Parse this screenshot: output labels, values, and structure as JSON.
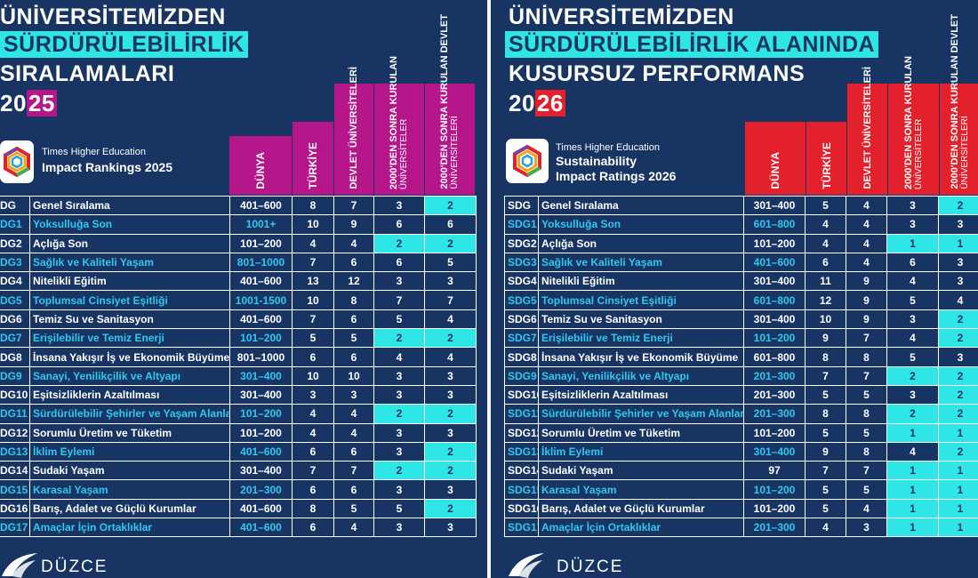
{
  "left": {
    "title_line1": "ÜNİVERSİTEMİZDEN",
    "title_line2": "SÜRDÜRÜLEBİLİRLİK",
    "title_line3": "SIRALAMALARI",
    "year_prefix": "20",
    "year_suffix": "25",
    "logo_sub": "Times Higher Education",
    "logo_main": "Impact Rankings 2025",
    "headers": {
      "dunya": "DÜNYA",
      "turkiye": "TÜRKİYE",
      "devlet": "DEVLET ÜNİVERSİTELERİ",
      "sonra_strong": "2000'DEN SONRA KURULAN",
      "sonra_light": "ÜNİVERSİTELER",
      "sonra_devlet_strong": "2000'DEN SONRA KURULAN DEVLET",
      "sonra_devlet_light": "ÜNİVERSİTELERİ"
    },
    "rows": [
      {
        "code": "DG",
        "name": "Genel Sıralama",
        "dunya": "401–600",
        "turkiye": "8",
        "devlet": "7",
        "sonra": "3",
        "sonra_devlet": "2"
      },
      {
        "code": "DG1",
        "name": "Yoksulluğa Son",
        "dunya": "1001+",
        "turkiye": "10",
        "devlet": "9",
        "sonra": "6",
        "sonra_devlet": "6"
      },
      {
        "code": "DG2",
        "name": "Açlığa Son",
        "dunya": "101–200",
        "turkiye": "4",
        "devlet": "4",
        "sonra": "2",
        "sonra_devlet": "2"
      },
      {
        "code": "DG3",
        "name": "Sağlık ve Kaliteli Yaşam",
        "dunya": "801–1000",
        "turkiye": "7",
        "devlet": "6",
        "sonra": "6",
        "sonra_devlet": "5"
      },
      {
        "code": "DG4",
        "name": "Nitelikli Eğitim",
        "dunya": "401–600",
        "turkiye": "13",
        "devlet": "12",
        "sonra": "3",
        "sonra_devlet": "3"
      },
      {
        "code": "DG5",
        "name": "Toplumsal Cinsiyet Eşitliği",
        "dunya": "1001-1500",
        "turkiye": "10",
        "devlet": "8",
        "sonra": "7",
        "sonra_devlet": "7"
      },
      {
        "code": "DG6",
        "name": "Temiz Su ve Sanitasyon",
        "dunya": "401–600",
        "turkiye": "7",
        "devlet": "6",
        "sonra": "5",
        "sonra_devlet": "4"
      },
      {
        "code": "DG7",
        "name": "Erişilebilir ve Temiz Enerji",
        "dunya": "101–200",
        "turkiye": "5",
        "devlet": "5",
        "sonra": "2",
        "sonra_devlet": "2"
      },
      {
        "code": "DG8",
        "name": "İnsana Yakışır İş ve Ekonomik Büyüme",
        "dunya": "801–1000",
        "turkiye": "6",
        "devlet": "6",
        "sonra": "4",
        "sonra_devlet": "4"
      },
      {
        "code": "DG9",
        "name": "Sanayi, Yenilikçilik ve Altyapı",
        "dunya": "301–400",
        "turkiye": "10",
        "devlet": "10",
        "sonra": "3",
        "sonra_devlet": "3"
      },
      {
        "code": "DG10",
        "name": "Eşitsizliklerin Azaltılması",
        "dunya": "301–400",
        "turkiye": "3",
        "devlet": "3",
        "sonra": "3",
        "sonra_devlet": "3"
      },
      {
        "code": "DG11",
        "name": "Sürdürülebilir Şehirler ve Yaşam Alanları",
        "dunya": "101–200",
        "turkiye": "4",
        "devlet": "4",
        "sonra": "2",
        "sonra_devlet": "2"
      },
      {
        "code": "DG12",
        "name": "Sorumlu Üretim ve Tüketim",
        "dunya": "101–200",
        "turkiye": "4",
        "devlet": "4",
        "sonra": "3",
        "sonra_devlet": "3"
      },
      {
        "code": "DG13",
        "name": "İklim Eylemi",
        "dunya": "401–600",
        "turkiye": "6",
        "devlet": "6",
        "sonra": "3",
        "sonra_devlet": "2"
      },
      {
        "code": "DG14",
        "name": "Sudaki Yaşam",
        "dunya": "301–400",
        "turkiye": "7",
        "devlet": "7",
        "sonra": "2",
        "sonra_devlet": "2"
      },
      {
        "code": "DG15",
        "name": "Karasal Yaşam",
        "dunya": "201–300",
        "turkiye": "6",
        "devlet": "6",
        "sonra": "3",
        "sonra_devlet": "3"
      },
      {
        "code": "DG16",
        "name": "Barış, Adalet ve Güçlü Kurumlar",
        "dunya": "401–600",
        "turkiye": "8",
        "devlet": "5",
        "sonra": "5",
        "sonra_devlet": "2"
      },
      {
        "code": "DG17",
        "name": "Amaçlar İçin Ortaklıklar",
        "dunya": "401–600",
        "turkiye": "6",
        "devlet": "4",
        "sonra": "3",
        "sonra_devlet": "3"
      }
    ],
    "highlights": [
      [
        0,
        "sonra_devlet"
      ],
      [
        2,
        "sonra"
      ],
      [
        2,
        "sonra_devlet"
      ],
      [
        7,
        "sonra"
      ],
      [
        7,
        "sonra_devlet"
      ],
      [
        11,
        "sonra"
      ],
      [
        11,
        "sonra_devlet"
      ],
      [
        13,
        "sonra_devlet"
      ],
      [
        14,
        "sonra"
      ],
      [
        14,
        "sonra_devlet"
      ],
      [
        16,
        "sonra_devlet"
      ]
    ],
    "footer": "DÜZCE"
  },
  "right": {
    "title_line1": "ÜNİVERSİTEMİZDEN",
    "title_line2": "SÜRDÜRÜLEBİLİRLİK ALANINDA",
    "title_line3": "KUSURSUZ PERFORMANS",
    "year_prefix": "20",
    "year_suffix": "26",
    "logo_sub": "Times Higher Education",
    "logo_main_1": "Sustainability",
    "logo_main_2": "Impact Ratings 2026",
    "headers": {
      "dunya": "DÜNYA",
      "turkiye": "TÜRKİYE",
      "devlet": "DEVLET ÜNİVERSİTELERİ",
      "sonra_strong": "2000'DEN SONRA KURULAN",
      "sonra_light": "ÜNİVERSİTELER",
      "sonra_devlet_strong": "2000'DEN SONRA KURULAN DEVLET",
      "sonra_devlet_light": "ÜNİVERSİTELERİ"
    },
    "rows": [
      {
        "code": "SDG",
        "name": "Genel Sıralama",
        "dunya": "301–400",
        "turkiye": "5",
        "devlet": "4",
        "sonra": "3",
        "sonra_devlet": "2"
      },
      {
        "code": "SDG1",
        "name": "Yoksulluğa Son",
        "dunya": "601–800",
        "turkiye": "4",
        "devlet": "4",
        "sonra": "3",
        "sonra_devlet": "3"
      },
      {
        "code": "SDG2",
        "name": "Açlığa Son",
        "dunya": "101–200",
        "turkiye": "4",
        "devlet": "4",
        "sonra": "1",
        "sonra_devlet": "1"
      },
      {
        "code": "SDG3",
        "name": "Sağlık ve Kaliteli Yaşam",
        "dunya": "401–600",
        "turkiye": "6",
        "devlet": "4",
        "sonra": "6",
        "sonra_devlet": "3"
      },
      {
        "code": "SDG4",
        "name": "Nitelikli Eğitim",
        "dunya": "301–400",
        "turkiye": "11",
        "devlet": "9",
        "sonra": "4",
        "sonra_devlet": "3"
      },
      {
        "code": "SDG5",
        "name": "Toplumsal Cinsiyet Eşitliği",
        "dunya": "601–800",
        "turkiye": "12",
        "devlet": "9",
        "sonra": "5",
        "sonra_devlet": "4"
      },
      {
        "code": "SDG6",
        "name": "Temiz Su ve Sanitasyon",
        "dunya": "301–400",
        "turkiye": "10",
        "devlet": "9",
        "sonra": "3",
        "sonra_devlet": "2"
      },
      {
        "code": "SDG7",
        "name": "Erişilebilir ve Temiz Enerji",
        "dunya": "101–200",
        "turkiye": "9",
        "devlet": "7",
        "sonra": "4",
        "sonra_devlet": "2"
      },
      {
        "code": "SDG8",
        "name": "İnsana Yakışır İş ve Ekonomik Büyüme",
        "dunya": "601–800",
        "turkiye": "8",
        "devlet": "8",
        "sonra": "5",
        "sonra_devlet": "3"
      },
      {
        "code": "SDG9",
        "name": "Sanayi, Yenilikçilik ve Altyapı",
        "dunya": "201–300",
        "turkiye": "7",
        "devlet": "7",
        "sonra": "2",
        "sonra_devlet": "2"
      },
      {
        "code": "SDG10",
        "name": "Eşitsizliklerin Azaltılması",
        "dunya": "201–300",
        "turkiye": "5",
        "devlet": "5",
        "sonra": "3",
        "sonra_devlet": "2"
      },
      {
        "code": "SDG11",
        "name": "Sürdürülebilir Şehirler ve Yaşam Alanları",
        "dunya": "201–300",
        "turkiye": "8",
        "devlet": "8",
        "sonra": "2",
        "sonra_devlet": "2"
      },
      {
        "code": "SDG12",
        "name": "Sorumlu Üretim ve Tüketim",
        "dunya": "101–200",
        "turkiye": "5",
        "devlet": "5",
        "sonra": "1",
        "sonra_devlet": "1"
      },
      {
        "code": "SDG13",
        "name": "İklim Eylemi",
        "dunya": "301–400",
        "turkiye": "9",
        "devlet": "8",
        "sonra": "4",
        "sonra_devlet": "2"
      },
      {
        "code": "SDG14",
        "name": "Sudaki Yaşam",
        "dunya": "97",
        "turkiye": "7",
        "devlet": "7",
        "sonra": "1",
        "sonra_devlet": "1"
      },
      {
        "code": "SDG15",
        "name": "Karasal Yaşam",
        "dunya": "101–200",
        "turkiye": "5",
        "devlet": "5",
        "sonra": "1",
        "sonra_devlet": "1"
      },
      {
        "code": "SDG16",
        "name": "Barış, Adalet ve Güçlü Kurumlar",
        "dunya": "101–200",
        "turkiye": "5",
        "devlet": "4",
        "sonra": "1",
        "sonra_devlet": "1"
      },
      {
        "code": "SDG17",
        "name": "Amaçlar İçin Ortaklıklar",
        "dunya": "201–300",
        "turkiye": "4",
        "devlet": "3",
        "sonra": "1",
        "sonra_devlet": "1"
      }
    ],
    "highlights": [
      [
        0,
        "sonra_devlet"
      ],
      [
        2,
        "sonra"
      ],
      [
        2,
        "sonra_devlet"
      ],
      [
        6,
        "sonra_devlet"
      ],
      [
        7,
        "sonra_devlet"
      ],
      [
        9,
        "sonra"
      ],
      [
        9,
        "sonra_devlet"
      ],
      [
        10,
        "sonra_devlet"
      ],
      [
        11,
        "sonra"
      ],
      [
        11,
        "sonra_devlet"
      ],
      [
        12,
        "sonra"
      ],
      [
        12,
        "sonra_devlet"
      ],
      [
        13,
        "sonra_devlet"
      ],
      [
        14,
        "sonra"
      ],
      [
        14,
        "sonra_devlet"
      ],
      [
        15,
        "sonra"
      ],
      [
        15,
        "sonra_devlet"
      ],
      [
        16,
        "sonra"
      ],
      [
        16,
        "sonra_devlet"
      ],
      [
        17,
        "sonra"
      ],
      [
        17,
        "sonra_devlet"
      ]
    ],
    "footer": "DÜZCE"
  },
  "colors": {
    "navy": "#183462",
    "cyan": "#2ee6e6",
    "magenta": "#b5168a",
    "red": "#e3212d",
    "light_blue_text": "#2ec9f0"
  },
  "icons": [
    "the-logo-icon",
    "duzce-wing-icon"
  ]
}
